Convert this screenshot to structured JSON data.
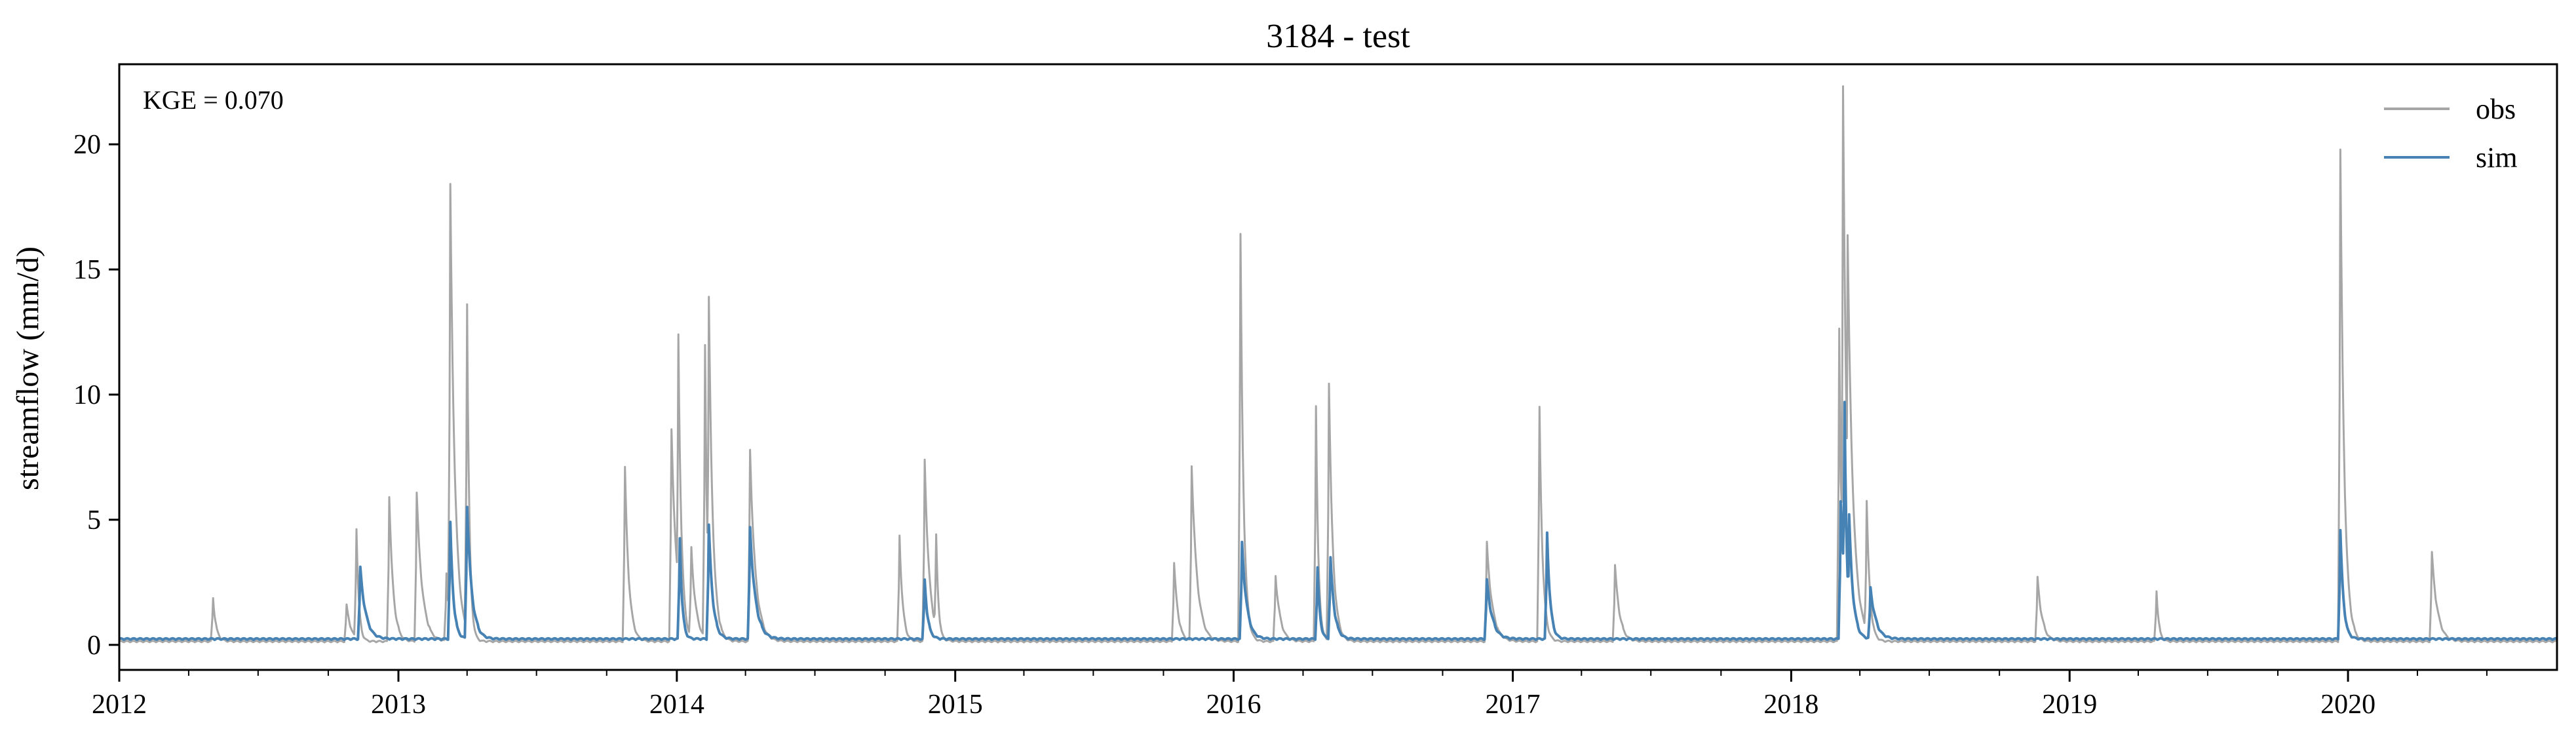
{
  "chart_data": {
    "type": "line",
    "title": "3184 - test",
    "xlabel": "",
    "ylabel": "streamflow (mm/d)",
    "xlim": [
      "2012-01-01",
      "2020-10-01"
    ],
    "ylim": [
      -1.0,
      23.2
    ],
    "x_ticks": [
      "2012",
      "2013",
      "2014",
      "2015",
      "2016",
      "2017",
      "2018",
      "2019",
      "2020"
    ],
    "y_ticks": [
      0,
      5,
      10,
      15,
      20
    ],
    "grid": false,
    "legend": "top-right",
    "annotation": "KGE = 0.070",
    "baseline": {
      "obs": 0.1,
      "sim": 0.2
    },
    "series": [
      {
        "name": "obs",
        "color": "#a6a6a6",
        "peaks": [
          {
            "date": "2012-05-03",
            "value": 1.8
          },
          {
            "date": "2012-10-25",
            "value": 1.5
          },
          {
            "date": "2012-11-07",
            "value": 4.6
          },
          {
            "date": "2012-12-20",
            "value": 5.9
          },
          {
            "date": "2013-01-25",
            "value": 6.0
          },
          {
            "date": "2013-03-05",
            "value": 2.8
          },
          {
            "date": "2013-03-10",
            "value": 18.3
          },
          {
            "date": "2013-04-01",
            "value": 13.6
          },
          {
            "date": "2013-10-25",
            "value": 7.0
          },
          {
            "date": "2013-12-25",
            "value": 8.5
          },
          {
            "date": "2014-01-03",
            "value": 12.3
          },
          {
            "date": "2014-01-20",
            "value": 3.8
          },
          {
            "date": "2014-02-07",
            "value": 11.9
          },
          {
            "date": "2014-02-12",
            "value": 13.8
          },
          {
            "date": "2014-04-07",
            "value": 7.7
          },
          {
            "date": "2014-10-20",
            "value": 4.3
          },
          {
            "date": "2014-11-22",
            "value": 7.3
          },
          {
            "date": "2014-12-07",
            "value": 4.3
          },
          {
            "date": "2015-10-15",
            "value": 3.2
          },
          {
            "date": "2015-11-07",
            "value": 7.1
          },
          {
            "date": "2016-01-10",
            "value": 16.3
          },
          {
            "date": "2016-02-25",
            "value": 2.7
          },
          {
            "date": "2016-04-18",
            "value": 9.5
          },
          {
            "date": "2016-05-05",
            "value": 10.4
          },
          {
            "date": "2016-11-28",
            "value": 4.0
          },
          {
            "date": "2017-02-05",
            "value": 9.4
          },
          {
            "date": "2017-05-15",
            "value": 3.1
          },
          {
            "date": "2018-03-05",
            "value": 12.6
          },
          {
            "date": "2018-03-10",
            "value": 22.2
          },
          {
            "date": "2018-03-16",
            "value": 16.3
          },
          {
            "date": "2018-04-10",
            "value": 5.7
          },
          {
            "date": "2018-11-20",
            "value": 2.6
          },
          {
            "date": "2019-04-25",
            "value": 2.1
          },
          {
            "date": "2019-12-22",
            "value": 19.7
          },
          {
            "date": "2020-04-20",
            "value": 3.6
          }
        ]
      },
      {
        "name": "sim",
        "color": "#4682b4",
        "peaks": [
          {
            "date": "2012-11-12",
            "value": 3.0
          },
          {
            "date": "2013-03-10",
            "value": 4.8
          },
          {
            "date": "2013-04-01",
            "value": 5.5
          },
          {
            "date": "2014-01-05",
            "value": 4.2
          },
          {
            "date": "2014-02-12",
            "value": 4.7
          },
          {
            "date": "2014-04-07",
            "value": 4.6
          },
          {
            "date": "2014-11-22",
            "value": 2.5
          },
          {
            "date": "2016-01-12",
            "value": 4.0
          },
          {
            "date": "2016-04-20",
            "value": 3.0
          },
          {
            "date": "2016-05-07",
            "value": 3.4
          },
          {
            "date": "2016-11-28",
            "value": 2.5
          },
          {
            "date": "2017-02-15",
            "value": 4.4
          },
          {
            "date": "2018-03-07",
            "value": 5.7
          },
          {
            "date": "2018-03-12",
            "value": 9.6
          },
          {
            "date": "2018-03-18",
            "value": 5.1
          },
          {
            "date": "2018-04-15",
            "value": 2.2
          },
          {
            "date": "2019-12-22",
            "value": 4.5
          }
        ]
      }
    ]
  }
}
